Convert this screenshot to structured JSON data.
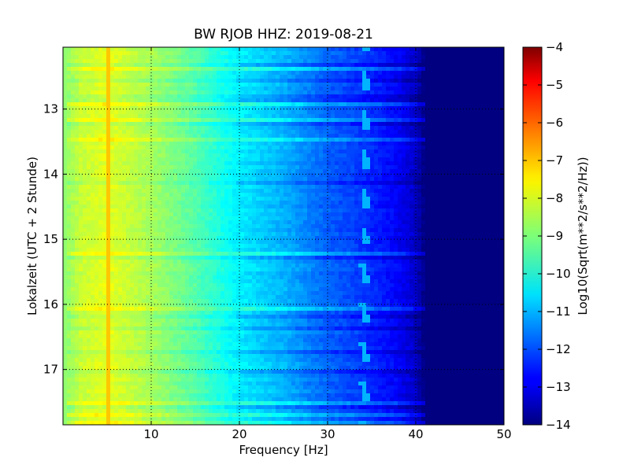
{
  "chart_data": {
    "type": "heatmap",
    "title": "BW RJOB HHZ: 2019-08-21",
    "xlabel": "Frequency [Hz]",
    "ylabel": "Lokalzeit (UTC + 2 Stunde)",
    "xlim": [
      0,
      50
    ],
    "ylim": [
      12.05,
      17.85
    ],
    "y_inverted": true,
    "x_ticks": [
      10,
      20,
      30,
      40,
      50
    ],
    "y_ticks": [
      13,
      14,
      15,
      16,
      17
    ],
    "grid": true,
    "colormap": "jet",
    "colorbar": {
      "label": "Log10(Sqrt(m**2/s**2/Hz))",
      "min": -14,
      "max": -4,
      "ticks": [
        -4,
        -5,
        -6,
        -7,
        -8,
        -9,
        -10,
        -11,
        -12,
        -13,
        -14
      ]
    },
    "profile": {
      "frequency": [
        0,
        2,
        5,
        10,
        15,
        20,
        25,
        30,
        33,
        36,
        38,
        40,
        41,
        50
      ],
      "value": [
        -8.9,
        -8.3,
        -8.0,
        -8.6,
        -9.4,
        -10.4,
        -11.0,
        -11.8,
        -12.1,
        -12.5,
        -12.8,
        -13.3,
        -14.0,
        -14.0
      ]
    },
    "features": [
      {
        "label": "narrow line",
        "frequency": 5.0,
        "value": -7.2
      },
      {
        "label": "drifting tone",
        "frequency": 34.0,
        "value": -11.0
      }
    ]
  }
}
